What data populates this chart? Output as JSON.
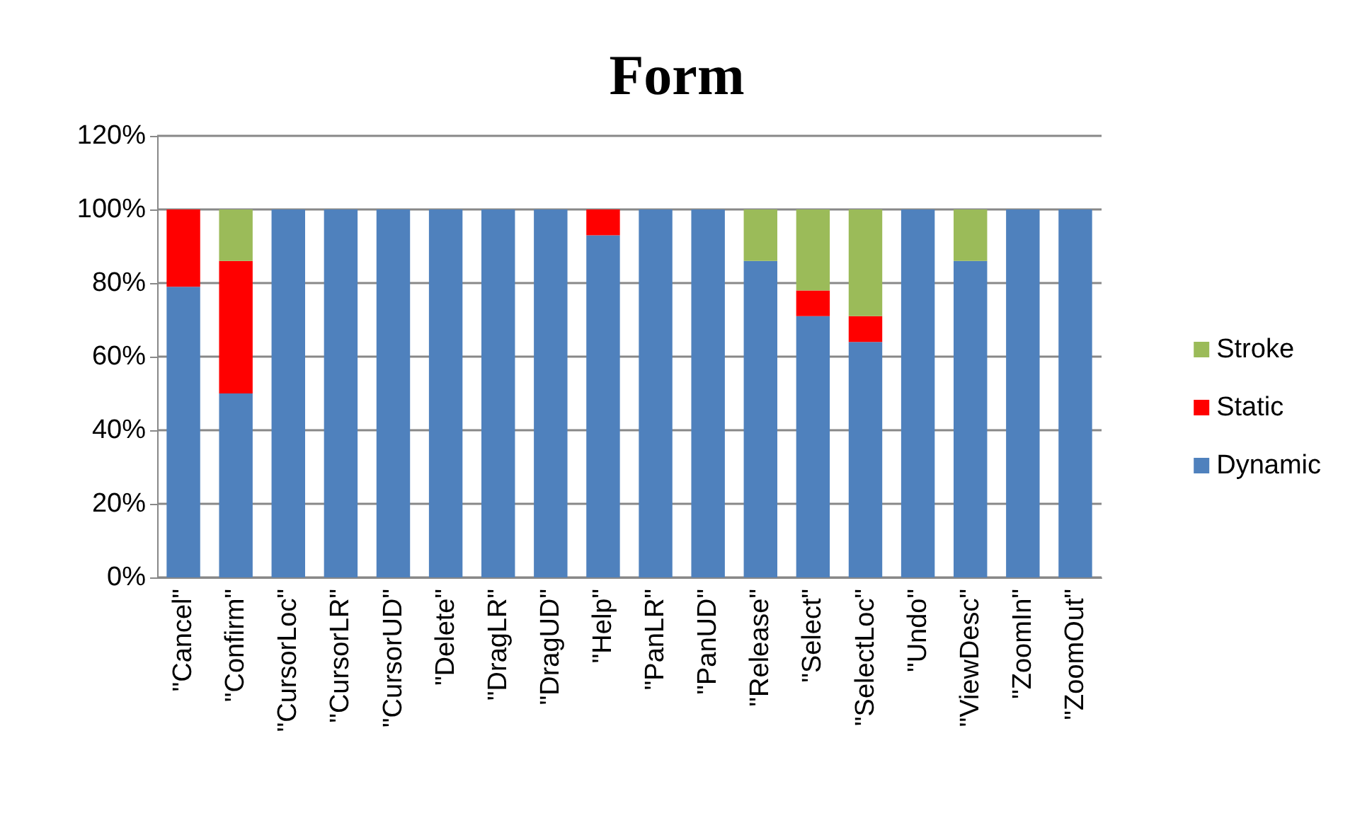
{
  "chart_data": {
    "type": "bar",
    "title": "Form",
    "stacked": true,
    "grid": "y",
    "legend": "right",
    "categories": [
      "\"Cancel\"",
      "\"Confirm\"",
      "\"CursorLoc\"",
      "\"CursorLR\"",
      "\"CursorUD\"",
      "\"Delete\"",
      "\"DragLR\"",
      "\"DragUD\"",
      "\"Help\"",
      "\"PanLR\"",
      "\"PanUD\"",
      "\"Release\"",
      "\"Select\"",
      "\"SelectLoc\"",
      "\"Undo\"",
      "\"ViewDesc\"",
      "\"ZoomIn\"",
      "\"ZoomOut\""
    ],
    "series": [
      {
        "name": "Dynamic",
        "color": "#4f81bd",
        "values": [
          79,
          50,
          100,
          100,
          100,
          100,
          100,
          100,
          93,
          100,
          100,
          86,
          71,
          64,
          100,
          86,
          100,
          100
        ]
      },
      {
        "name": "Static",
        "color": "#ff0000",
        "values": [
          21,
          36,
          0,
          0,
          0,
          0,
          0,
          0,
          7,
          0,
          0,
          0,
          7,
          7,
          0,
          0,
          0,
          0
        ]
      },
      {
        "name": "Stroke",
        "color": "#9bbb59",
        "values": [
          0,
          14,
          0,
          0,
          0,
          0,
          0,
          0,
          0,
          0,
          0,
          14,
          22,
          29,
          0,
          14,
          0,
          0
        ]
      }
    ],
    "ylim": [
      0,
      120
    ],
    "yticks": [
      {
        "value": 0,
        "label": "0%"
      },
      {
        "value": 20,
        "label": "20%"
      },
      {
        "value": 40,
        "label": "40%"
      },
      {
        "value": 60,
        "label": "60%"
      },
      {
        "value": 80,
        "label": "80%"
      },
      {
        "value": 100,
        "label": "100%"
      },
      {
        "value": 120,
        "label": "120%"
      }
    ]
  }
}
